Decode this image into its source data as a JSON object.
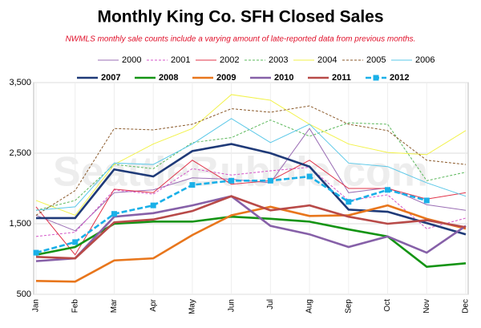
{
  "chart_data": {
    "type": "line",
    "title": "Monthly King Co. SFH Closed Sales",
    "subtitle": "NWMLS monthly sale counts include a varying amount of late-reported  data from previous months.",
    "watermark": "SeattleBubble.com",
    "categories": [
      "Jan",
      "Feb",
      "Mar",
      "Apr",
      "May",
      "Jun",
      "Jul",
      "Aug",
      "Sep",
      "Oct",
      "Nov",
      "Dec"
    ],
    "ylim": [
      500,
      3500
    ],
    "yticks": [
      {
        "value": 500,
        "label": "500"
      },
      {
        "value": 1500,
        "label": "1,500"
      },
      {
        "value": 2500,
        "label": "2,500"
      },
      {
        "value": 3500,
        "label": "3,500"
      }
    ],
    "grid": true,
    "series": [
      {
        "name": "2000",
        "color": "#9b6fb5",
        "values": [
          1620,
          1400,
          1940,
          1980,
          2150,
          2130,
          2080,
          2850,
          1940,
          2010,
          1770,
          1690
        ]
      },
      {
        "name": "2001",
        "color": "#d455c8",
        "dashed": true,
        "values": [
          1320,
          1380,
          1980,
          1920,
          2280,
          2190,
          2250,
          2300,
          1830,
          1910,
          1430,
          1580
        ]
      },
      {
        "name": "2002",
        "color": "#e0344a",
        "values": [
          1740,
          1060,
          1990,
          1940,
          2400,
          2060,
          2110,
          2400,
          2000,
          2000,
          1850,
          1940
        ]
      },
      {
        "name": "2003",
        "color": "#5cb85c",
        "dashed": true,
        "values": [
          1690,
          1830,
          2340,
          2280,
          2650,
          2720,
          2970,
          2740,
          2930,
          2910,
          2110,
          2230
        ]
      },
      {
        "name": "2004",
        "color": "#f2f24a",
        "values": [
          1830,
          1620,
          2340,
          2630,
          2850,
          3330,
          3250,
          2910,
          2630,
          2510,
          2480,
          2820
        ]
      },
      {
        "name": "2005",
        "color": "#8b5a2b",
        "dashed": true,
        "values": [
          1620,
          1970,
          2850,
          2830,
          2910,
          3130,
          3080,
          3170,
          2910,
          2820,
          2400,
          2340
        ]
      },
      {
        "name": "2006",
        "color": "#5bc8e8",
        "values": [
          1690,
          1740,
          2360,
          2340,
          2630,
          2990,
          2650,
          2910,
          2360,
          2310,
          2080,
          1890
        ]
      },
      {
        "name": "2007",
        "color": "#1f3a78",
        "thick": true,
        "values": [
          1580,
          1580,
          2270,
          2170,
          2530,
          2630,
          2500,
          2310,
          1700,
          1670,
          1510,
          1350
        ]
      },
      {
        "name": "2008",
        "color": "#149414",
        "thick": true,
        "values": [
          1060,
          1170,
          1500,
          1530,
          1530,
          1600,
          1570,
          1530,
          1420,
          1320,
          890,
          940
        ]
      },
      {
        "name": "2009",
        "color": "#e8761c",
        "thick": true,
        "values": [
          690,
          680,
          980,
          1010,
          1340,
          1620,
          1740,
          1610,
          1620,
          1760,
          1570,
          1430
        ]
      },
      {
        "name": "2010",
        "color": "#8660a8",
        "thick": true,
        "values": [
          970,
          1010,
          1600,
          1650,
          1760,
          1890,
          1470,
          1350,
          1170,
          1320,
          1090,
          1470
        ]
      },
      {
        "name": "2011",
        "color": "#b84a48",
        "thick": true,
        "values": [
          1030,
          1010,
          1520,
          1560,
          1680,
          1890,
          1690,
          1760,
          1600,
          1500,
          1550,
          1450
        ]
      },
      {
        "name": "2012",
        "color": "#1ab0e8",
        "thick": true,
        "dashed": true,
        "marker": "square",
        "values": [
          1090,
          1240,
          1640,
          1760,
          2050,
          2110,
          2110,
          2170,
          1810,
          1980,
          1830,
          null
        ]
      }
    ]
  }
}
